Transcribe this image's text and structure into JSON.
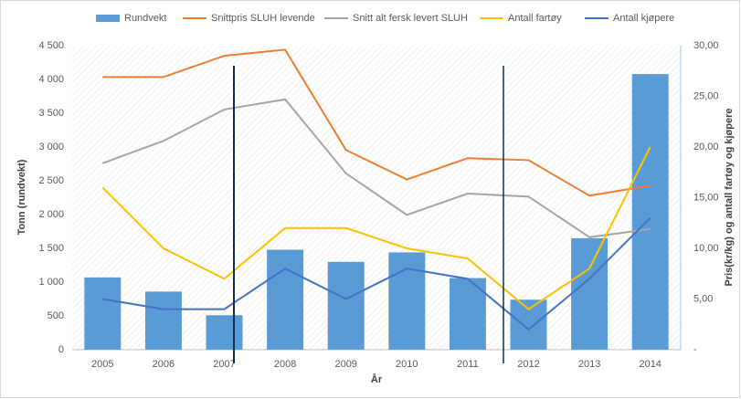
{
  "chart_data": {
    "type": "bar-line",
    "categories": [
      "2005",
      "2006",
      "2007",
      "2008",
      "2009",
      "2010",
      "2011",
      "2012",
      "2013",
      "2014"
    ],
    "x_label": "År",
    "y_label": "Tonn (rundvekt)",
    "y2_label": "Pris(kr/kg) og antall fartøy og kjøpere",
    "ylim": [
      0,
      4500
    ],
    "yticks": [
      0,
      {
        "value": 500,
        "label": "500"
      },
      {
        "value": 1000,
        "label": "1 000"
      },
      {
        "value": 1500,
        "label": "1 500"
      },
      {
        "value": 2000,
        "label": "2 000"
      },
      {
        "value": 2500,
        "label": "2 500"
      },
      {
        "value": 3000,
        "label": "3 000"
      },
      {
        "value": 3500,
        "label": "3 500"
      },
      {
        "value": 4000,
        "label": "4 000"
      },
      {
        "value": 4500,
        "label": "4 500"
      }
    ],
    "y2lim": [
      0,
      30
    ],
    "y2ticks": [
      {
        "value": 0,
        "label": "-"
      },
      {
        "value": 5,
        "label": "5,00"
      },
      {
        "value": 10,
        "label": "10,00"
      },
      {
        "value": 15,
        "label": "15,00"
      },
      {
        "value": 20,
        "label": "20,00"
      },
      {
        "value": 25,
        "label": "25,00"
      },
      {
        "value": 30,
        "label": "30,00"
      }
    ],
    "series": [
      {
        "name": "Rundvekt",
        "type": "bar",
        "color": "#5b9bd5",
        "values": [
          1070,
          860,
          510,
          1480,
          1300,
          1440,
          1060,
          740,
          1650,
          4080
        ]
      },
      {
        "name": "Snittpris SLUH levende",
        "type": "line",
        "axis": "y2",
        "color": "#ed7d31",
        "values": [
          26.9,
          26.9,
          29.0,
          29.6,
          19.7,
          16.8,
          18.9,
          18.7,
          15.2,
          16.2
        ]
      },
      {
        "name": "Snitt alt fersk levert SLUH",
        "type": "line",
        "axis": "y2",
        "color": "#a5a5a5",
        "values": [
          18.4,
          20.6,
          23.7,
          24.7,
          17.4,
          13.3,
          15.4,
          15.1,
          11.1,
          11.9
        ]
      },
      {
        "name": "Antall fartøy",
        "type": "line",
        "axis": "y2",
        "color": "#ffc000",
        "values": [
          16,
          10,
          7,
          12,
          12,
          10,
          9,
          4,
          8,
          20
        ]
      },
      {
        "name": "Antall kjøpere",
        "type": "line",
        "axis": "y2",
        "color": "#4472c4",
        "values": [
          5,
          4,
          4,
          8,
          5,
          8,
          7,
          2,
          7,
          13
        ]
      }
    ]
  }
}
